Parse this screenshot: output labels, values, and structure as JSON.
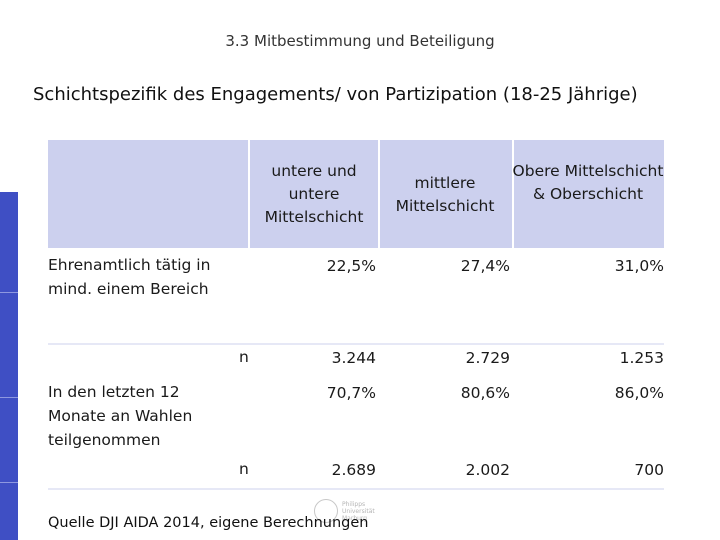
{
  "header": {
    "title": "3.3 Mitbestimmung und Beteiligung"
  },
  "subtitle": "Schichtspezifik des Engagements/ von Partizipation (18-25 Jährige)",
  "table": {
    "columns": [
      "untere und untere Mittelschicht",
      "mittlere Mittelschicht",
      "Obere Mittelschicht & Oberschicht"
    ],
    "rows": [
      {
        "label": "Ehrenamtlich tätig in mind. einem Bereich",
        "values": [
          "22,5%",
          "27,4%",
          "31,0%"
        ]
      },
      {
        "label": "n",
        "values": [
          "3.244",
          "2.729",
          "1.253"
        ]
      },
      {
        "label": "In den letzten 12 Monate an Wahlen teilgenommen",
        "values": [
          "70,7%",
          "80,6%",
          "86,0%"
        ]
      },
      {
        "label": "n",
        "values": [
          "2.689",
          "2.002",
          "700"
        ]
      }
    ]
  },
  "footer": {
    "source": "Quelle DJI AIDA 2014, eigene Berechnungen"
  },
  "logo": {
    "line1": "Philipps",
    "line2": "Universität",
    "line3": "Marburg"
  }
}
